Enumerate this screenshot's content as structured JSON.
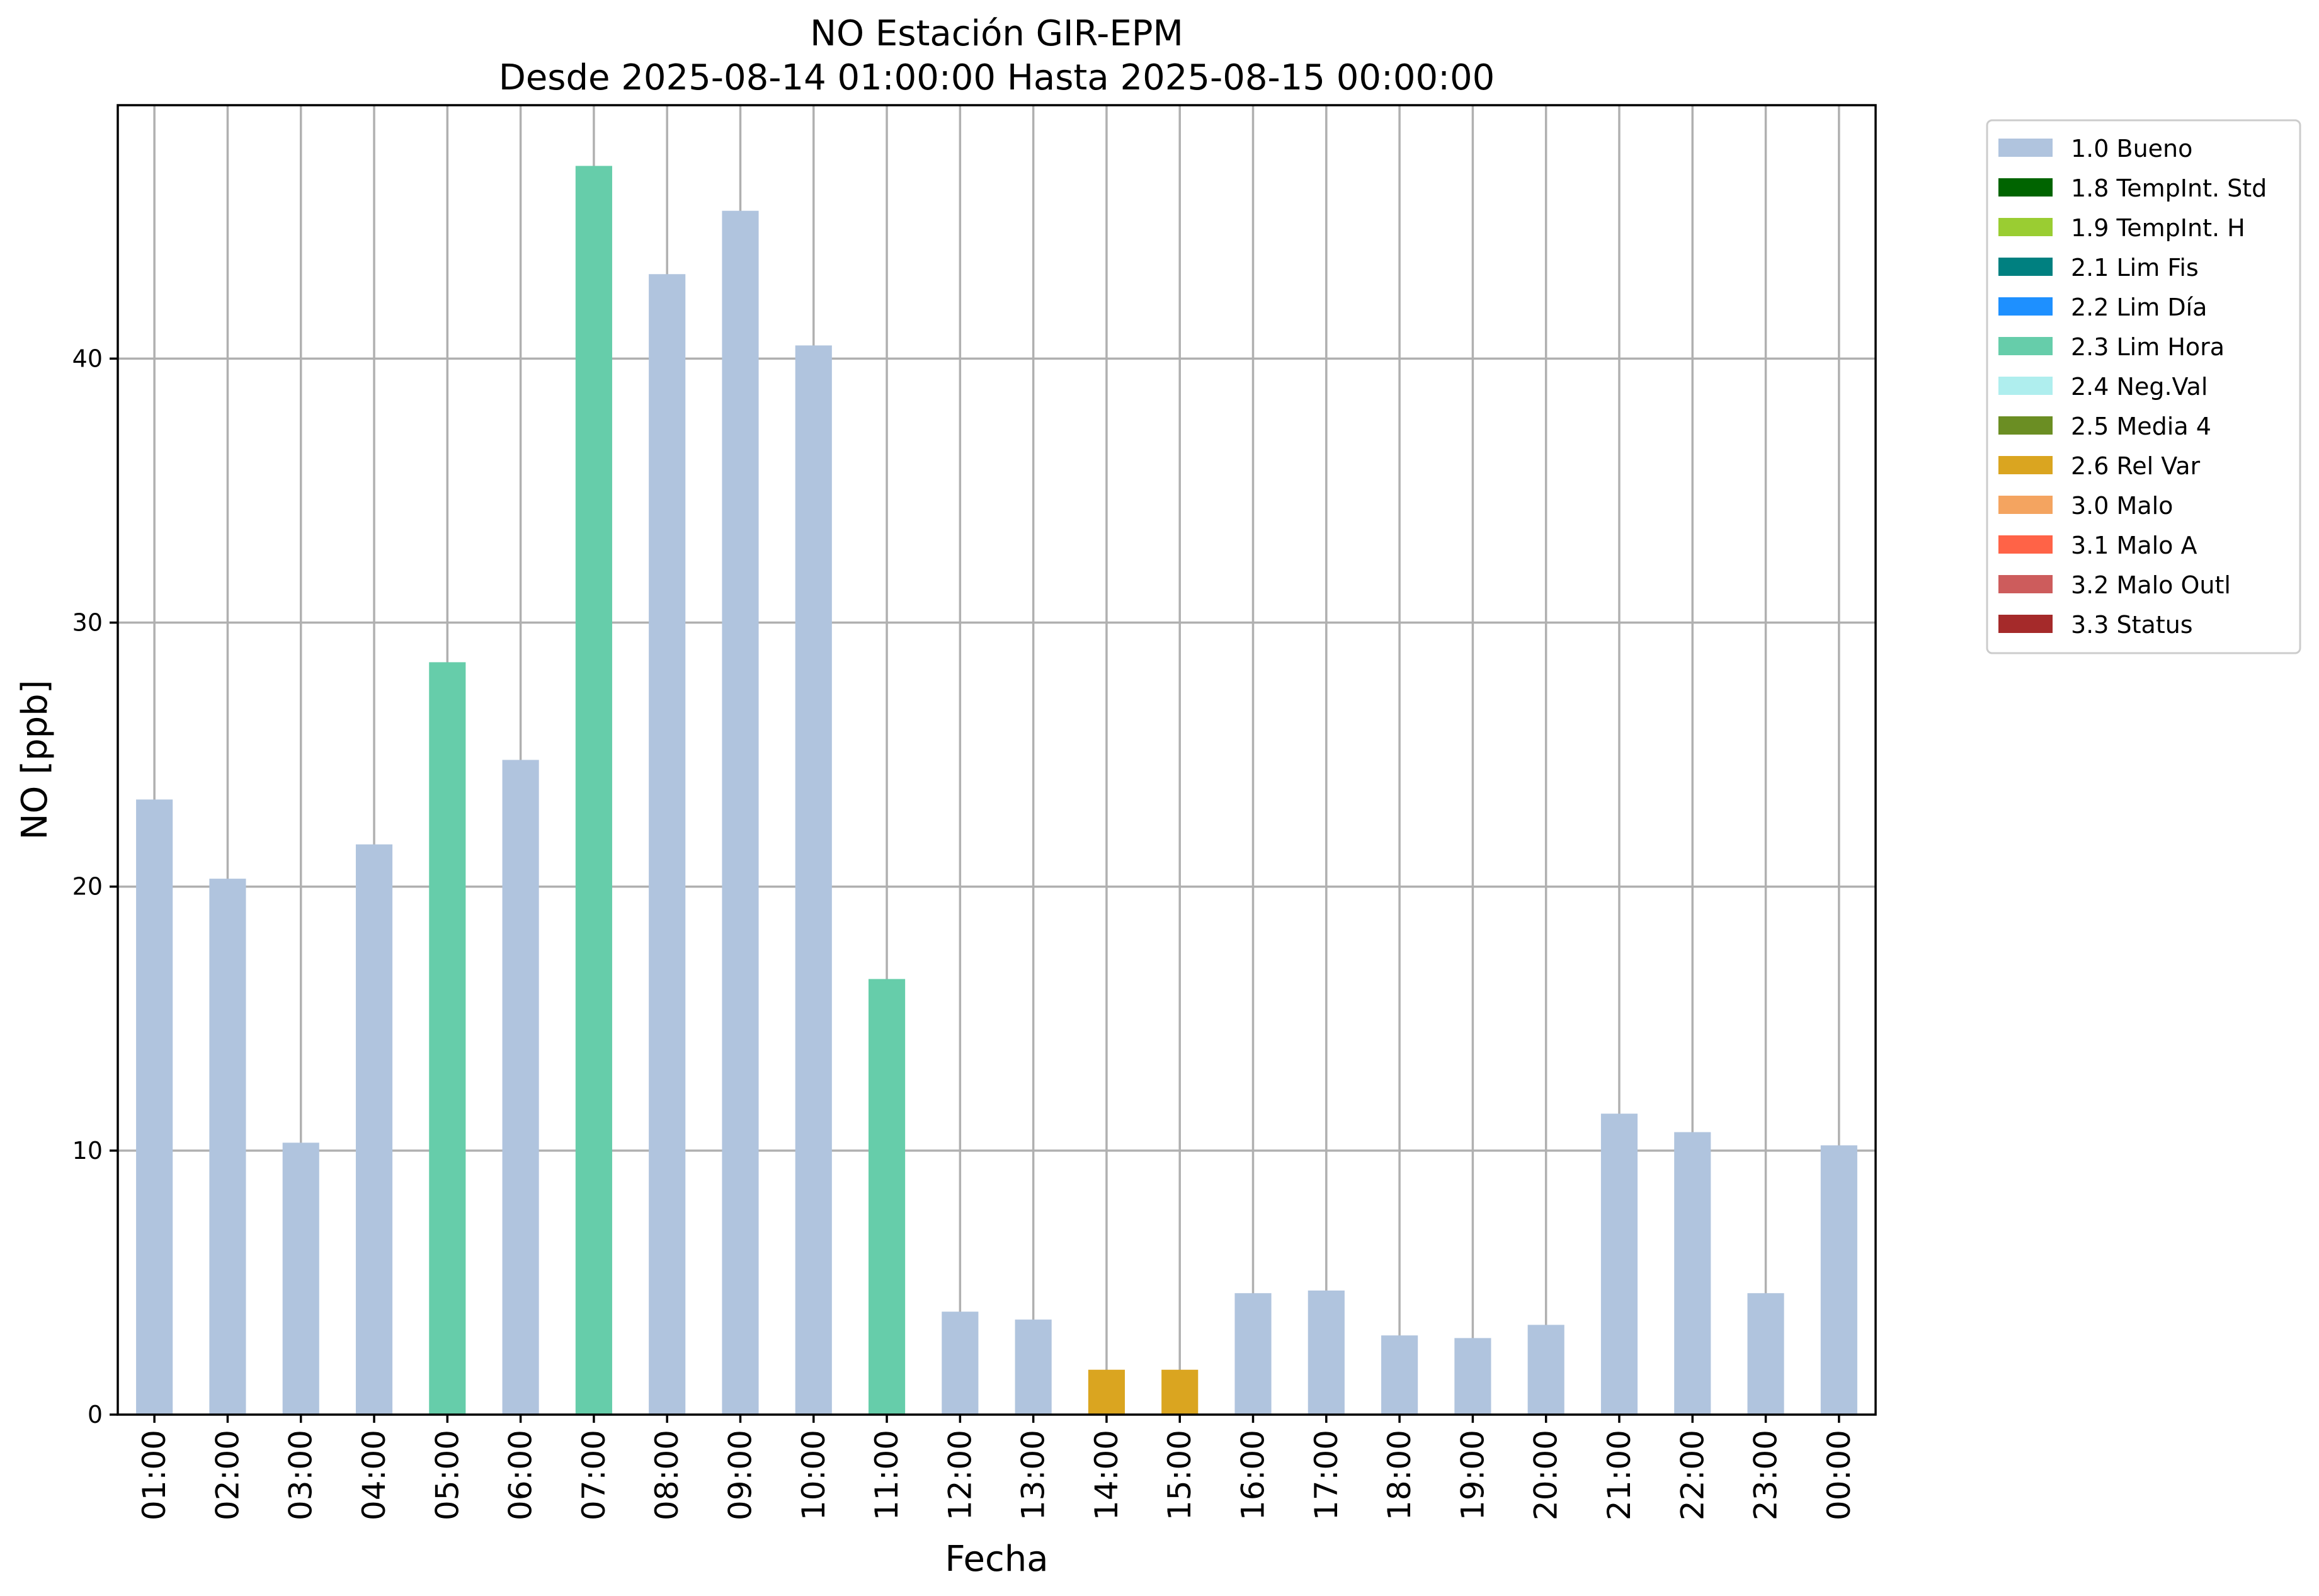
{
  "chart_data": {
    "type": "bar",
    "title": "NO Estación GIR-EPM",
    "subtitle": "Desde 2025-08-14 01:00:00 Hasta 2025-08-15 00:00:00",
    "xlabel": "Fecha",
    "ylabel": "NO [ppb]",
    "ylim": [
      0,
      49.6
    ],
    "yticks": [
      0,
      10,
      20,
      30,
      40
    ],
    "grid": true,
    "legend_position": "outside-top-right",
    "categories": [
      "01:00",
      "02:00",
      "03:00",
      "04:00",
      "05:00",
      "06:00",
      "07:00",
      "08:00",
      "09:00",
      "10:00",
      "11:00",
      "12:00",
      "13:00",
      "14:00",
      "15:00",
      "16:00",
      "17:00",
      "18:00",
      "19:00",
      "20:00",
      "21:00",
      "22:00",
      "23:00",
      "00:00"
    ],
    "values": [
      23.3,
      20.3,
      10.3,
      21.6,
      28.5,
      24.8,
      47.3,
      43.2,
      45.6,
      40.5,
      16.5,
      3.9,
      3.6,
      1.7,
      1.7,
      4.6,
      4.7,
      3.0,
      2.9,
      3.4,
      11.4,
      10.7,
      4.6,
      10.2
    ],
    "flags": [
      "1.0 Bueno",
      "1.0 Bueno",
      "1.0 Bueno",
      "1.0 Bueno",
      "2.3 Lim Hora",
      "1.0 Bueno",
      "2.3 Lim Hora",
      "1.0 Bueno",
      "1.0 Bueno",
      "1.0 Bueno",
      "2.3 Lim Hora",
      "1.0 Bueno",
      "1.0 Bueno",
      "2.6 Rel Var",
      "2.6 Rel Var",
      "1.0 Bueno",
      "1.0 Bueno",
      "1.0 Bueno",
      "1.0 Bueno",
      "1.0 Bueno",
      "1.0 Bueno",
      "1.0 Bueno",
      "1.0 Bueno",
      "1.0 Bueno"
    ],
    "legend": [
      {
        "label": "1.0 Bueno",
        "color": "#b0c4de"
      },
      {
        "label": "1.8 TempInt. Std",
        "color": "#006400"
      },
      {
        "label": "1.9 TempInt. H",
        "color": "#9acd32"
      },
      {
        "label": "2.1 Lim Fis",
        "color": "#008080"
      },
      {
        "label": "2.2 Lim Día",
        "color": "#1e90ff"
      },
      {
        "label": "2.3 Lim Hora",
        "color": "#66cdaa"
      },
      {
        "label": "2.4 Neg.Val",
        "color": "#afeeee"
      },
      {
        "label": "2.5 Media 4",
        "color": "#6b8e23"
      },
      {
        "label": "2.6 Rel Var",
        "color": "#daa520"
      },
      {
        "label": "3.0 Malo",
        "color": "#f4a460"
      },
      {
        "label": "3.1 Malo A",
        "color": "#ff6347"
      },
      {
        "label": "3.2 Malo Outl",
        "color": "#cd5c5c"
      },
      {
        "label": "3.3 Status",
        "color": "#a52a2a"
      }
    ]
  }
}
